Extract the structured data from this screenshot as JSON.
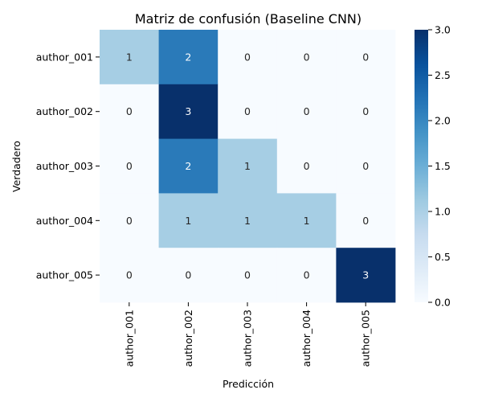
{
  "chart_data": {
    "type": "heatmap",
    "title": "Matriz de confusión (Baseline CNN)",
    "xlabel": "Predicción",
    "ylabel": "Verdadero",
    "row_labels": [
      "author_001",
      "author_002",
      "author_003",
      "author_004",
      "author_005"
    ],
    "col_labels": [
      "author_001",
      "author_002",
      "author_003",
      "author_004",
      "author_005"
    ],
    "values": [
      [
        1,
        2,
        0,
        0,
        0
      ],
      [
        0,
        3,
        0,
        0,
        0
      ],
      [
        0,
        2,
        1,
        0,
        0
      ],
      [
        0,
        1,
        1,
        1,
        0
      ],
      [
        0,
        0,
        0,
        0,
        3
      ]
    ],
    "colorbar": {
      "min": 0.0,
      "max": 3.0,
      "ticks": [
        "0.0",
        "0.5",
        "1.0",
        "1.5",
        "2.0",
        "2.5",
        "3.0"
      ],
      "colormap": "Blues"
    },
    "colors": {
      "0": "#f7fbff",
      "1": "#a6cee4",
      "2": "#2a7ab9",
      "3": "#08306b"
    },
    "grid": false
  }
}
